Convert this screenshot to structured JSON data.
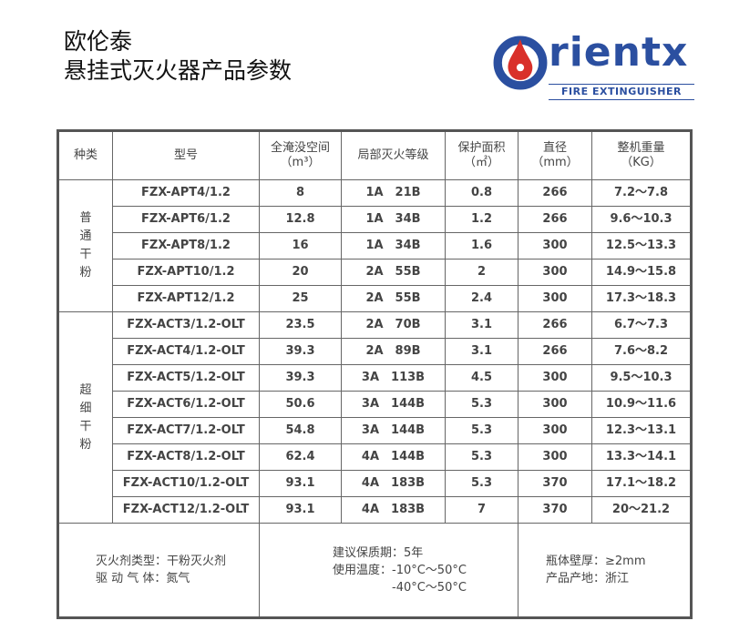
{
  "title": {
    "line1": "欧伦泰",
    "line2": "悬挂式灭火器产品参数"
  },
  "logo": {
    "brand": "rientx",
    "tagline": "FIRE EXTINGUISHER",
    "colors": {
      "blue": "#2b4fa0",
      "red": "#d9302a"
    }
  },
  "headers": [
    "种类",
    "型号",
    "全淹没空间",
    "（m³）",
    "局部灭火等级",
    "保护面积",
    "（㎡）",
    "直径",
    "（mm）",
    "整机重量",
    "（KG）"
  ],
  "groups": [
    {
      "name": "普\n通\n干\n粉",
      "rows": [
        [
          "FZX-APT4/1.2",
          "8",
          "1A　21B",
          "0.8",
          "266",
          "7.2～7.8"
        ],
        [
          "FZX-APT6/1.2",
          "12.8",
          "1A　34B",
          "1.2",
          "266",
          "9.6～10.3"
        ],
        [
          "FZX-APT8/1.2",
          "16",
          "1A　34B",
          "1.6",
          "300",
          "12.5～13.3"
        ],
        [
          "FZX-APT10/1.2",
          "20",
          "2A　55B",
          "2",
          "300",
          "14.9～15.8"
        ],
        [
          "FZX-APT12/1.2",
          "25",
          "2A　55B",
          "2.4",
          "300",
          "17.3～18.3"
        ]
      ]
    },
    {
      "name": "超\n细\n干\n粉",
      "rows": [
        [
          "FZX-ACT3/1.2-OLT",
          "23.5",
          "2A　70B",
          "3.1",
          "266",
          "6.7～7.3"
        ],
        [
          "FZX-ACT4/1.2-OLT",
          "39.3",
          "2A　89B",
          "3.1",
          "266",
          "7.6～8.2"
        ],
        [
          "FZX-ACT5/1.2-OLT",
          "39.3",
          "3A　113B",
          "4.5",
          "300",
          "9.5～10.3"
        ],
        [
          "FZX-ACT6/1.2-OLT",
          "50.6",
          "3A　144B",
          "5.3",
          "300",
          "10.9～11.6"
        ],
        [
          "FZX-ACT7/1.2-OLT",
          "54.8",
          "3A　144B",
          "5.3",
          "300",
          "12.3～13.1"
        ],
        [
          "FZX-ACT8/1.2-OLT",
          "62.4",
          "4A　144B",
          "5.3",
          "300",
          "13.3～14.1"
        ],
        [
          "FZX-ACT10/1.2-OLT",
          "93.1",
          "4A　183B",
          "5.3",
          "370",
          "17.1～18.2"
        ],
        [
          "FZX-ACT12/1.2-OLT",
          "93.1",
          "4A　183B",
          "7",
          "370",
          "20～21.2"
        ]
      ]
    }
  ],
  "footer": {
    "left": [
      "灭火剂类型：干粉灭火剂",
      "驱 动 气 体：氮气"
    ],
    "middle": [
      "建议保质期：5年",
      "使用温度：-10°C～50°C",
      "　　　　　-40°C～50°C"
    ],
    "right": [
      "瓶体壁厚：≥2mm",
      "产品产地：浙江"
    ]
  }
}
